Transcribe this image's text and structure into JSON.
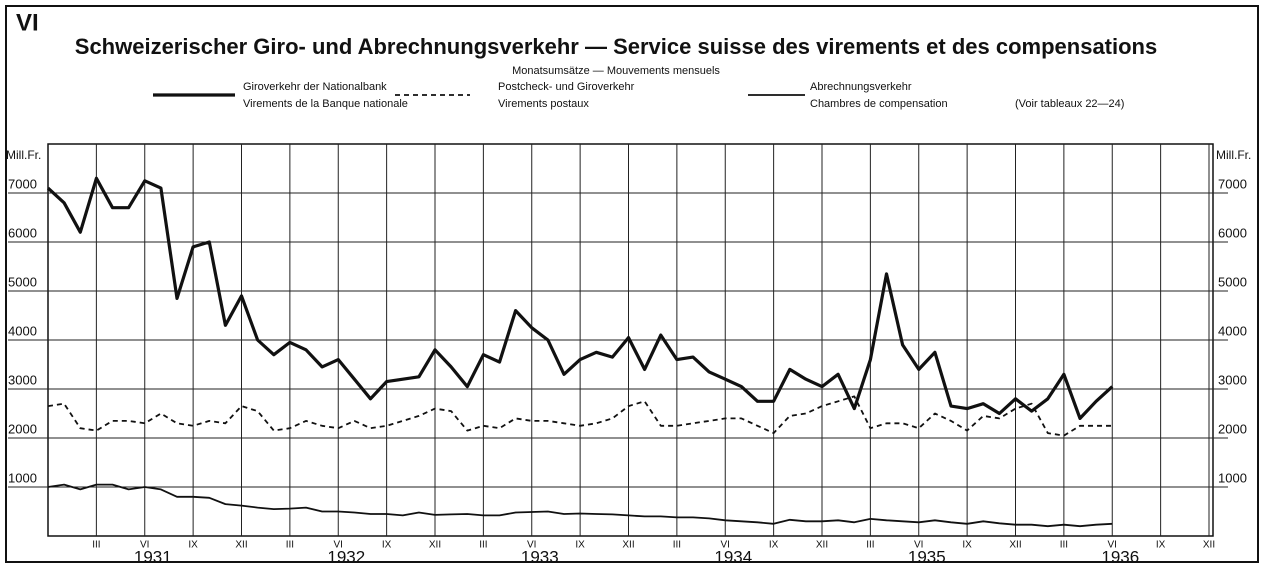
{
  "chart_data": {
    "type": "line",
    "panel": "VI",
    "title": "Schweizerischer Giro- und Abrechnungsverkehr — Service suisse des virements et des compensations",
    "subtitle": "Monatsumsätze — Mouvements mensuels",
    "note": "(Voir tableaux 22—24)",
    "y_label": "Mill.Fr.",
    "categories": [
      null,
      null,
      null,
      "III",
      null,
      null,
      "VI",
      null,
      null,
      "IX",
      null,
      null,
      "XII",
      null,
      null,
      "III",
      null,
      null,
      "VI",
      null,
      null,
      "IX",
      null,
      null,
      "XII",
      null,
      null,
      "III",
      null,
      null,
      "VI",
      null,
      null,
      "IX",
      null,
      null,
      "XII",
      null,
      null,
      "III",
      null,
      null,
      "VI",
      null,
      null,
      "IX",
      null,
      null,
      "XII",
      null,
      null,
      "III",
      null,
      null,
      "VI",
      null,
      null,
      "IX",
      null,
      null,
      "XII",
      null,
      null,
      "III",
      null,
      null,
      "VI",
      null,
      null,
      "IX",
      null,
      null,
      "XII"
    ],
    "years": [
      "1931",
      "1932",
      "1933",
      "1934",
      "1935",
      "1936"
    ],
    "ylim": [
      0,
      8000
    ],
    "yticks": [
      1000,
      2000,
      3000,
      4000,
      5000,
      6000,
      7000
    ],
    "grid": true,
    "series": [
      {
        "name": "Giroverkehr der Nationalbank",
        "name_fr": "Virements de la Banque nationale",
        "color": "#111111",
        "line_style": "bold",
        "values": [
          7100,
          6800,
          6200,
          7300,
          6700,
          6700,
          7250,
          7100,
          4850,
          5900,
          6000,
          4300,
          4900,
          4000,
          3700,
          3950,
          3800,
          3450,
          3600,
          3200,
          2800,
          3150,
          3200,
          3250,
          3800,
          3450,
          3050,
          3700,
          3550,
          4600,
          4250,
          4000,
          3300,
          3600,
          3750,
          3650,
          4050,
          3400,
          4100,
          3600,
          3650,
          3350,
          3200,
          3050,
          2750,
          2750,
          3400,
          3200,
          3050,
          3300,
          2600,
          3600,
          5350,
          3900,
          3400,
          3750,
          2650,
          2600,
          2700,
          2500,
          2800,
          2550,
          2800,
          3300,
          2400,
          2750,
          3050,
          null,
          null,
          null,
          null,
          null,
          null
        ]
      },
      {
        "name": "Postcheck- und Giroverkehr",
        "name_fr": "Virements postaux",
        "color": "#111111",
        "line_style": "dashed",
        "values": [
          2650,
          2700,
          2200,
          2150,
          2350,
          2350,
          2300,
          2500,
          2300,
          2250,
          2350,
          2300,
          2650,
          2550,
          2150,
          2200,
          2350,
          2250,
          2200,
          2350,
          2200,
          2250,
          2350,
          2450,
          2600,
          2550,
          2150,
          2250,
          2200,
          2400,
          2350,
          2350,
          2300,
          2250,
          2300,
          2400,
          2650,
          2750,
          2250,
          2250,
          2300,
          2350,
          2400,
          2400,
          2250,
          2100,
          2450,
          2500,
          2650,
          2750,
          2850,
          2200,
          2300,
          2300,
          2200,
          2500,
          2350,
          2150,
          2450,
          2400,
          2600,
          2700,
          2100,
          2050,
          2250,
          2250,
          2250,
          null,
          null,
          null,
          null,
          null,
          null
        ]
      },
      {
        "name": "Abrechnungsverkehr",
        "name_fr": "Chambres de compensation",
        "color": "#111111",
        "line_style": "solid",
        "values": [
          1000,
          1050,
          950,
          1050,
          1050,
          950,
          1000,
          950,
          800,
          800,
          780,
          650,
          620,
          580,
          550,
          560,
          580,
          500,
          500,
          480,
          450,
          450,
          420,
          480,
          430,
          440,
          450,
          420,
          420,
          480,
          490,
          500,
          450,
          460,
          450,
          440,
          420,
          400,
          400,
          380,
          380,
          360,
          320,
          300,
          280,
          250,
          330,
          300,
          300,
          320,
          280,
          350,
          320,
          300,
          280,
          320,
          280,
          250,
          300,
          260,
          230,
          230,
          200,
          230,
          200,
          230,
          250,
          null,
          null,
          null,
          null,
          null,
          null
        ]
      }
    ]
  }
}
